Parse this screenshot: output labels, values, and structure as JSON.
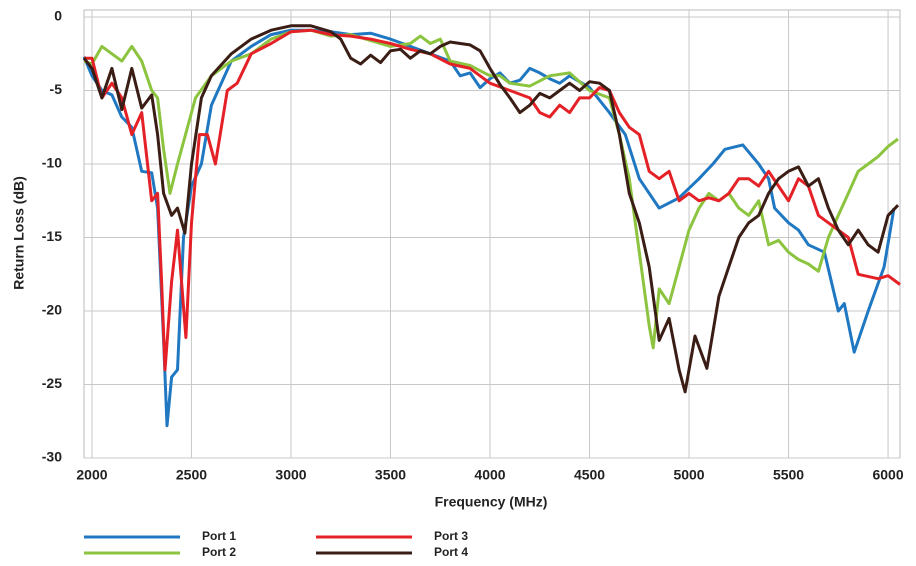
{
  "chart_data": {
    "type": "line",
    "xlabel": "Frequency (MHz)",
    "ylabel": "Return Loss (dB)",
    "xlim": [
      1960,
      6060
    ],
    "ylim": [
      -30,
      0
    ],
    "xticks": [
      2000,
      2500,
      3000,
      3500,
      4000,
      4500,
      5000,
      5500,
      6000
    ],
    "yticks": [
      0,
      -5,
      -10,
      -15,
      -20,
      -25,
      -30
    ],
    "grid": true,
    "series": [
      {
        "name": "Port 1",
        "color": "#1f78c1",
        "x": [
          1960,
          2000,
          2050,
          2100,
          2150,
          2200,
          2250,
          2300,
          2330,
          2360,
          2377,
          2400,
          2430,
          2460,
          2500,
          2550,
          2600,
          2650,
          2700,
          2800,
          2900,
          3000,
          3100,
          3200,
          3300,
          3400,
          3500,
          3600,
          3700,
          3800,
          3850,
          3900,
          3950,
          4000,
          4050,
          4100,
          4150,
          4200,
          4250,
          4300,
          4350,
          4400,
          4500,
          4600,
          4680,
          4750,
          4850,
          4950,
          5050,
          5120,
          5180,
          5270,
          5350,
          5400,
          5430,
          5500,
          5550,
          5600,
          5680,
          5750,
          5780,
          5830,
          5900,
          5980,
          6030
        ],
        "values": [
          -2.7,
          -4,
          -5,
          -5.3,
          -6.8,
          -7.5,
          -10.5,
          -10.6,
          -13,
          -22,
          -27.8,
          -24.5,
          -24,
          -15,
          -11.5,
          -10,
          -6,
          -4.5,
          -3,
          -2,
          -1.2,
          -0.9,
          -0.9,
          -1,
          -1.2,
          -1.1,
          -1.5,
          -2,
          -2.5,
          -3,
          -4,
          -3.8,
          -4.8,
          -4.2,
          -3.8,
          -4.5,
          -4.3,
          -3.5,
          -3.8,
          -4.2,
          -4.5,
          -4,
          -4.8,
          -6.5,
          -8,
          -11,
          -13,
          -12.3,
          -11,
          -10,
          -9,
          -8.7,
          -10,
          -11,
          -13,
          -14,
          -14.5,
          -15.5,
          -16,
          -20,
          -19.5,
          -22.8,
          -20,
          -17,
          -13
        ]
      },
      {
        "name": "Port 2",
        "color": "#8cc43f",
        "x": [
          1960,
          2000,
          2050,
          2100,
          2150,
          2200,
          2250,
          2300,
          2330,
          2360,
          2392,
          2430,
          2470,
          2520,
          2600,
          2700,
          2800,
          2900,
          3000,
          3100,
          3200,
          3300,
          3400,
          3500,
          3600,
          3650,
          3700,
          3750,
          3800,
          3900,
          4000,
          4050,
          4100,
          4200,
          4300,
          4400,
          4500,
          4600,
          4650,
          4700,
          4750,
          4800,
          4820,
          4850,
          4900,
          4950,
          5000,
          5050,
          5100,
          5150,
          5200,
          5250,
          5300,
          5350,
          5400,
          5450,
          5500,
          5550,
          5600,
          5650,
          5700,
          5750,
          5800,
          5850,
          5900,
          5950,
          6000,
          6050
        ],
        "values": [
          -3,
          -3.2,
          -2,
          -2.5,
          -3,
          -2,
          -3,
          -5,
          -5.5,
          -9,
          -12,
          -10,
          -8,
          -5.5,
          -4,
          -3,
          -2.5,
          -1.5,
          -1,
          -0.9,
          -1.3,
          -1.2,
          -1.6,
          -2,
          -1.8,
          -1.3,
          -1.8,
          -1.5,
          -3,
          -3.3,
          -4,
          -4,
          -4.5,
          -4.7,
          -4,
          -3.8,
          -5,
          -5.5,
          -8,
          -11,
          -16,
          -21,
          -22.5,
          -18.5,
          -19.5,
          -17,
          -14.5,
          -13,
          -12,
          -12.5,
          -12,
          -13,
          -13.5,
          -12.5,
          -15.5,
          -15.2,
          -16,
          -16.5,
          -16.8,
          -17.3,
          -15,
          -13.5,
          -12,
          -10.5,
          -10,
          -9.5,
          -8.8,
          -8.3
        ]
      },
      {
        "name": "Port 3",
        "color": "#e42127",
        "x": [
          1960,
          2000,
          2050,
          2100,
          2150,
          2200,
          2250,
          2300,
          2330,
          2350,
          2367,
          2400,
          2430,
          2472,
          2500,
          2540,
          2580,
          2620,
          2680,
          2730,
          2800,
          2900,
          3000,
          3100,
          3200,
          3300,
          3400,
          3500,
          3600,
          3700,
          3800,
          3900,
          4000,
          4100,
          4200,
          4250,
          4300,
          4350,
          4400,
          4450,
          4500,
          4550,
          4600,
          4650,
          4700,
          4750,
          4800,
          4850,
          4900,
          4950,
          5000,
          5050,
          5100,
          5150,
          5200,
          5250,
          5300,
          5350,
          5400,
          5450,
          5500,
          5550,
          5600,
          5650,
          5700,
          5750,
          5800,
          5850,
          5950,
          6000,
          6060
        ],
        "values": [
          -2.8,
          -2.8,
          -5.5,
          -4.5,
          -5.5,
          -8,
          -6.5,
          -12.5,
          -12,
          -18,
          -24,
          -18,
          -14.5,
          -21.8,
          -14,
          -8,
          -8,
          -10,
          -5,
          -4.5,
          -2.5,
          -1.8,
          -1,
          -0.9,
          -1.2,
          -1.3,
          -1.5,
          -1.8,
          -2.2,
          -2.5,
          -3.2,
          -3.5,
          -4.5,
          -5,
          -5.5,
          -6.5,
          -6.8,
          -6,
          -6.5,
          -5.5,
          -5.5,
          -4.8,
          -5,
          -6.5,
          -7.5,
          -8,
          -10.5,
          -11,
          -10.5,
          -12.5,
          -12,
          -12.5,
          -12.3,
          -12.5,
          -12,
          -11,
          -11,
          -11.5,
          -10.5,
          -11.5,
          -12.5,
          -11,
          -11.5,
          -13.5,
          -14,
          -14.5,
          -15,
          -17.5,
          -17.8,
          -17.6,
          -18.2
        ]
      },
      {
        "name": "Port 4",
        "color": "#3a1d14",
        "x": [
          1960,
          2000,
          2050,
          2100,
          2150,
          2200,
          2250,
          2300,
          2330,
          2360,
          2400,
          2430,
          2467,
          2500,
          2550,
          2600,
          2700,
          2800,
          2900,
          3000,
          3100,
          3200,
          3250,
          3300,
          3350,
          3400,
          3450,
          3500,
          3550,
          3600,
          3650,
          3700,
          3750,
          3800,
          3850,
          3900,
          3950,
          4000,
          4050,
          4100,
          4150,
          4200,
          4250,
          4300,
          4350,
          4400,
          4450,
          4500,
          4550,
          4600,
          4650,
          4700,
          4750,
          4800,
          4850,
          4900,
          4950,
          4980,
          5030,
          5090,
          5150,
          5200,
          5250,
          5300,
          5350,
          5400,
          5450,
          5500,
          5550,
          5600,
          5650,
          5700,
          5750,
          5800,
          5850,
          5900,
          5950,
          6000,
          6050
        ],
        "values": [
          -2.8,
          -3.5,
          -5.5,
          -3.5,
          -6.3,
          -3.5,
          -6.2,
          -5.3,
          -8,
          -12,
          -13.5,
          -13,
          -14.7,
          -10,
          -5.5,
          -4,
          -2.5,
          -1.5,
          -0.9,
          -0.6,
          -0.6,
          -1,
          -1.5,
          -2.8,
          -3.2,
          -2.6,
          -3.1,
          -2.3,
          -2.2,
          -2.8,
          -2.3,
          -2.5,
          -2,
          -1.7,
          -1.8,
          -1.9,
          -2.3,
          -3.5,
          -4.6,
          -5.5,
          -6.5,
          -6,
          -5.2,
          -5.5,
          -5,
          -4.5,
          -5,
          -4.4,
          -4.5,
          -5,
          -8,
          -12,
          -14,
          -17,
          -22,
          -20.5,
          -24,
          -25.5,
          -21.7,
          -23.9,
          -19,
          -17,
          -15,
          -14,
          -13.5,
          -12,
          -11,
          -10.5,
          -10.2,
          -11.5,
          -11,
          -13,
          -14.5,
          -15.5,
          -14.5,
          -15.5,
          -16,
          -13.5,
          -12.8
        ]
      }
    ]
  }
}
